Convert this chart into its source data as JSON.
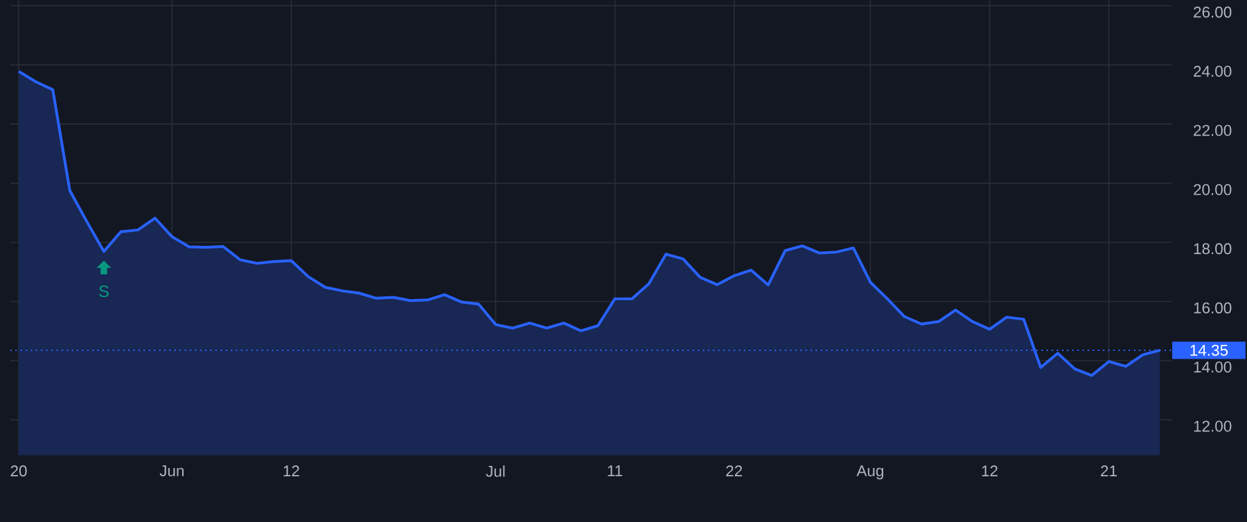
{
  "chart_data": {
    "type": "area",
    "categories": [
      "20",
      null,
      null,
      null,
      null,
      null,
      null,
      null,
      null,
      "Jun",
      null,
      null,
      null,
      null,
      null,
      null,
      "12",
      null,
      null,
      null,
      null,
      null,
      null,
      null,
      null,
      null,
      null,
      null,
      "Jul",
      null,
      null,
      null,
      null,
      null,
      null,
      "11",
      null,
      null,
      null,
      null,
      null,
      null,
      "22",
      null,
      null,
      null,
      null,
      null,
      null,
      null,
      "Aug",
      null,
      null,
      null,
      null,
      null,
      null,
      "12",
      null,
      null,
      null,
      null,
      null,
      null,
      "21",
      null,
      null,
      null
    ],
    "series": [
      {
        "color": "#2962ff",
        "values": [
          23.78,
          23.43,
          23.16,
          19.75,
          18.7,
          17.69,
          18.36,
          18.42,
          18.82,
          18.19,
          17.85,
          17.83,
          17.86,
          17.41,
          17.29,
          17.35,
          17.38,
          16.84,
          16.48,
          16.36,
          16.28,
          16.11,
          16.14,
          16.03,
          16.05,
          16.23,
          15.98,
          15.91,
          15.22,
          15.1,
          15.27,
          15.1,
          15.27,
          15.01,
          15.18,
          16.09,
          16.09,
          16.6,
          17.6,
          17.44,
          16.82,
          16.57,
          16.87,
          17.06,
          16.56,
          17.72,
          17.88,
          17.64,
          17.67,
          17.81,
          16.65,
          16.09,
          15.49,
          15.24,
          15.32,
          15.71,
          15.32,
          15.06,
          15.47,
          15.4,
          13.77,
          14.25,
          13.72,
          13.5,
          13.97,
          13.81,
          14.2,
          14.35
        ]
      }
    ],
    "ylim": [
      10.8,
      27.05
    ],
    "yticks": [
      {
        "value": 12,
        "label": "12.00"
      },
      {
        "value": 14,
        "label": "14.00"
      },
      {
        "value": 16,
        "label": "16.00"
      },
      {
        "value": 18,
        "label": "18.00"
      },
      {
        "value": 20,
        "label": "20.00"
      },
      {
        "value": 22,
        "label": "22.00"
      },
      {
        "value": 24,
        "label": "24.00"
      },
      {
        "value": 26,
        "label": "26.00"
      }
    ],
    "grid": true,
    "line_style": "solid",
    "marker": "none",
    "ref_lines": [
      {
        "axis": "y",
        "value": 14.35,
        "label": "14.35",
        "color": "#2962ff",
        "line_style": "dotted"
      }
    ],
    "annotations": [
      {
        "text": "S",
        "y": 17.69
      }
    ]
  }
}
